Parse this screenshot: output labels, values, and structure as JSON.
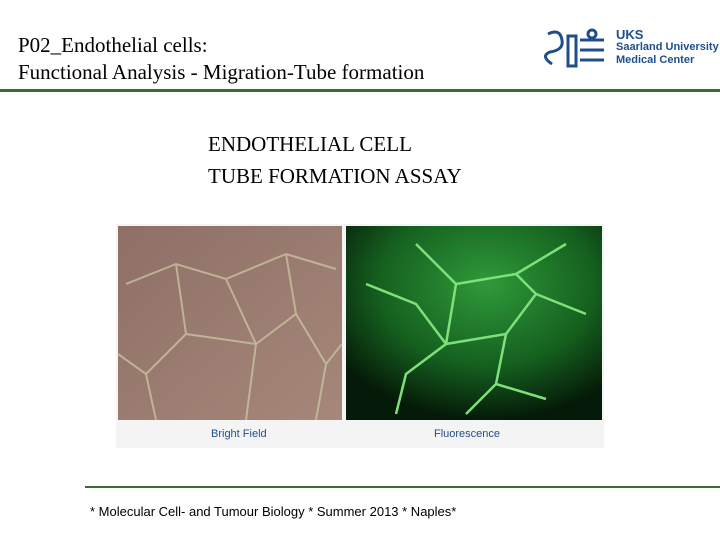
{
  "header": {
    "title_lines": [
      "P02_Endothelial cells:",
      "Functional Analysis - Migration-Tube formation"
    ],
    "logo": {
      "abbreviation": "UKS",
      "lines": [
        "Saarland University",
        "Medical Center"
      ]
    }
  },
  "heading": {
    "lines": [
      "ENDOTHELIAL CELL",
      "TUBE FORMATION ASSAY"
    ]
  },
  "figure": {
    "captions": [
      "Bright Field",
      "Fluorescence"
    ]
  },
  "footer": {
    "text": "* Molecular Cell- and Tumour Biology * Summer 2013 * Naples*"
  }
}
